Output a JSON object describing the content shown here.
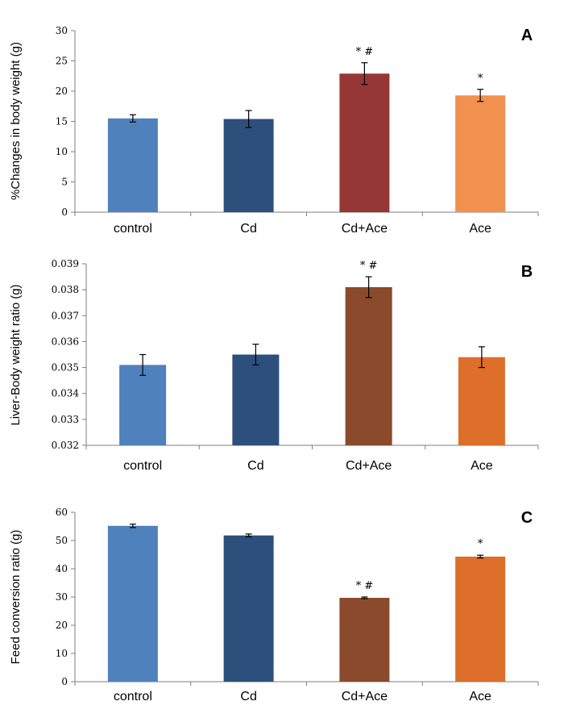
{
  "chart_data": [
    {
      "type": "bar",
      "panel": "A",
      "ylabel": "%Changes in body weight (g)",
      "categories": [
        "control",
        "Cd",
        "Cd+Ace",
        "Ace"
      ],
      "values": [
        15.5,
        15.4,
        22.9,
        19.3
      ],
      "errors": [
        0.6,
        1.4,
        1.8,
        1.0
      ],
      "annotations": [
        "",
        "",
        "*#",
        "*"
      ],
      "colors": [
        "#4f81bd",
        "#2d4f7c",
        "#953735",
        "#f2904f"
      ],
      "ylim": [
        0,
        30
      ],
      "yticks": [
        "0",
        "5",
        "10",
        "15",
        "20",
        "25",
        "30"
      ]
    },
    {
      "type": "bar",
      "panel": "B",
      "ylabel": "Liver-Body weight ratio (g)",
      "categories": [
        "control",
        "Cd",
        "Cd+Ace",
        "Ace"
      ],
      "values": [
        0.0351,
        0.0355,
        0.0381,
        0.0354
      ],
      "errors": [
        0.0004,
        0.0004,
        0.0004,
        0.0004
      ],
      "annotations": [
        "",
        "",
        "*#",
        ""
      ],
      "colors": [
        "#4f81bd",
        "#2d4f7c",
        "#8a4a2b",
        "#dd6f2a"
      ],
      "ylim": [
        0.032,
        0.039
      ],
      "yticks": [
        "0.032",
        "0.033",
        "0.034",
        "0.035",
        "0.036",
        "0.037",
        "0.038",
        "0.039"
      ]
    },
    {
      "type": "bar",
      "panel": "C",
      "ylabel": "Feed conversion ratio (g)",
      "categories": [
        "control",
        "Cd",
        "Cd+Ace",
        "Ace"
      ],
      "values": [
        55.2,
        51.8,
        29.7,
        44.3
      ],
      "errors": [
        0.6,
        0.5,
        0.3,
        0.5
      ],
      "annotations": [
        "",
        "",
        "*#",
        "*"
      ],
      "colors": [
        "#4f81bd",
        "#2d4f7c",
        "#8a4a2b",
        "#dd6f2a"
      ],
      "ylim": [
        0,
        60
      ],
      "yticks": [
        "0",
        "10",
        "20",
        "30",
        "40",
        "50",
        "60"
      ]
    }
  ]
}
